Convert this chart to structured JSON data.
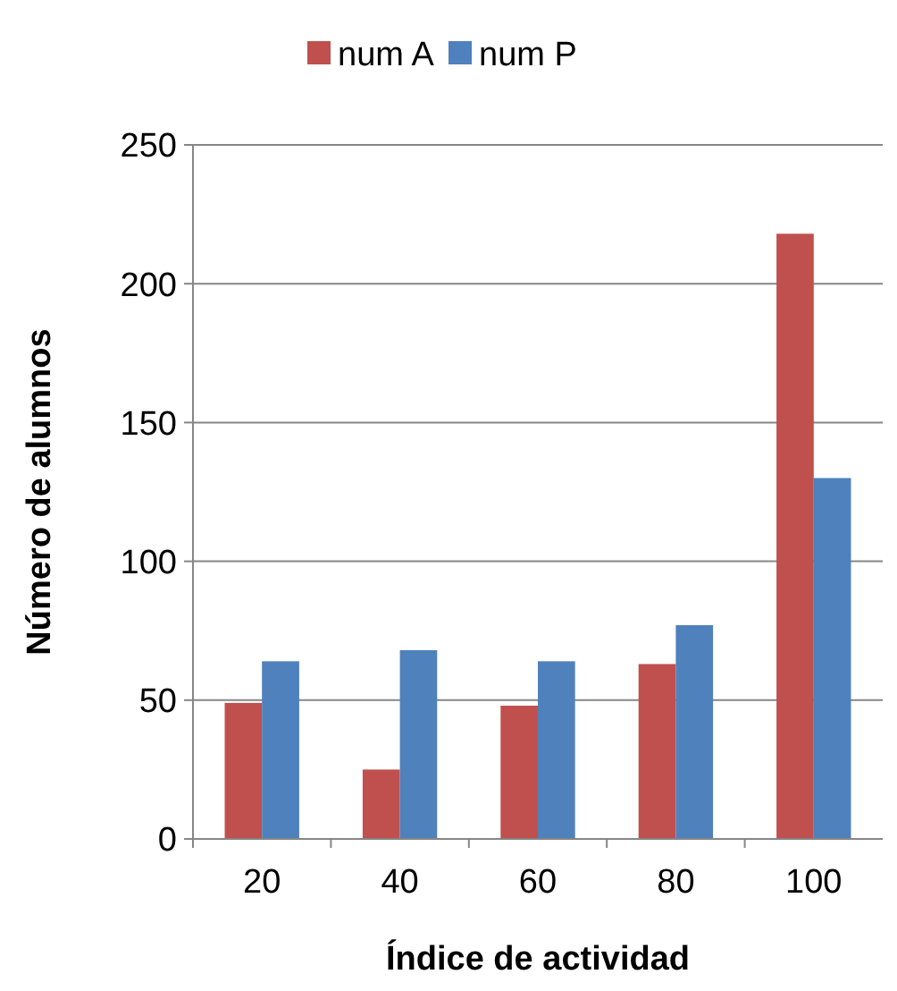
{
  "chart_data": {
    "type": "bar",
    "xlabel": "Índice de actividad",
    "ylabel": "Número de alumnos",
    "categories": [
      "20",
      "40",
      "60",
      "80",
      "100"
    ],
    "series": [
      {
        "name": "num A",
        "color": "#c0504d",
        "values": [
          49,
          25,
          48,
          63,
          218
        ]
      },
      {
        "name": "num P",
        "color": "#4f81bd",
        "values": [
          64,
          68,
          64,
          77,
          130
        ]
      }
    ],
    "ylim": [
      0,
      250
    ],
    "yticks": [
      0,
      50,
      100,
      150,
      200,
      250
    ],
    "grid": "y",
    "legend": "top"
  }
}
